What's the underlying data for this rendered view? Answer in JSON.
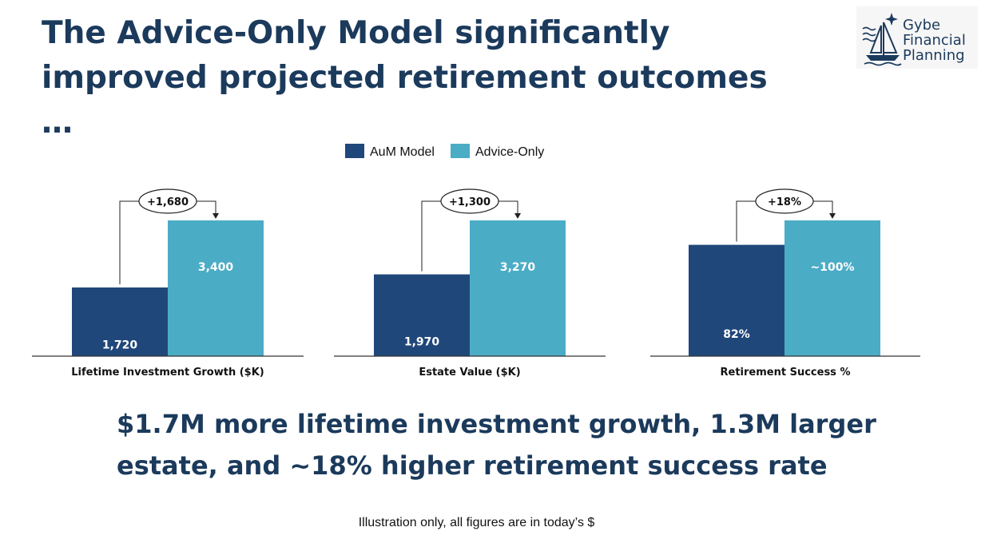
{
  "slide": {
    "title": "The Advice-Only Model significantly improved projected retirement outcomes …",
    "summary_line1": "$1.7M more lifetime investment growth, 1.3M larger",
    "summary_line2": "estate, and  ~18% higher retirement success rate",
    "footnote": "Illustration only, all figures are in today’s $"
  },
  "logo": {
    "line1": "Gybe",
    "line2": "Financial",
    "line3": "Planning",
    "icon": "sailboat-icon"
  },
  "colors": {
    "aum": "#20477a",
    "advice": "#4bacc6",
    "title": "#1b3a5c"
  },
  "chart_data": {
    "type": "bar",
    "legend": {
      "placement": "top-center",
      "entries": [
        "AuM Model",
        "Advice-Only"
      ]
    },
    "grid": false,
    "panels": [
      {
        "xlabel": "Lifetime Investment Growth ($K)",
        "categories": [
          "AuM Model",
          "Advice-Only"
        ],
        "values": [
          1720,
          3400
        ],
        "labels": [
          "1,720",
          "3,400"
        ],
        "ylim": [
          0,
          3400
        ],
        "difference_label": "+1,680"
      },
      {
        "xlabel": "Estate Value ($K)",
        "categories": [
          "AuM Model",
          "Advice-Only"
        ],
        "values": [
          1970,
          3270
        ],
        "labels": [
          "1,970",
          "3,270"
        ],
        "ylim": [
          0,
          3270
        ],
        "difference_label": "+1,300"
      },
      {
        "xlabel": "Retirement Success %",
        "categories": [
          "AuM Model",
          "Advice-Only"
        ],
        "values": [
          82,
          100
        ],
        "labels": [
          "82%",
          "~100%"
        ],
        "ylim": [
          0,
          100
        ],
        "difference_label": "+18%"
      }
    ]
  }
}
